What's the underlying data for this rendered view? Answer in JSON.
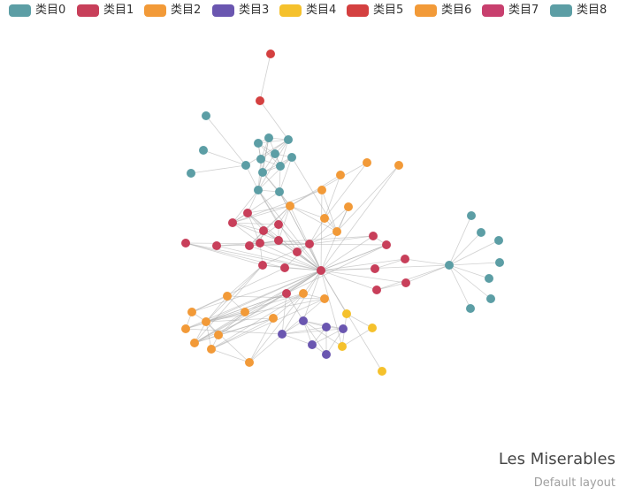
{
  "chart_data": {
    "type": "graph",
    "title": "Les Miserables",
    "subtitle": "Default layout",
    "colors": [
      "#5c9ea5",
      "#c83f5a",
      "#f29a38",
      "#6a56b0",
      "#f5c12c",
      "#d44040",
      "#f29a38",
      "#c83f6e",
      "#5c9ea5"
    ],
    "categories": [
      "类目0",
      "类目1",
      "类目2",
      "类目3",
      "类目4",
      "类目5",
      "类目6",
      "类目7",
      "类目8"
    ],
    "nodes": [
      {
        "id": 0,
        "category": 5
      },
      {
        "id": 1,
        "category": 5
      },
      {
        "id": 2,
        "category": 0
      },
      {
        "id": 3,
        "category": 0
      },
      {
        "id": 4,
        "category": 0
      },
      {
        "id": 5,
        "category": 0
      },
      {
        "id": 6,
        "category": 0
      },
      {
        "id": 7,
        "category": 0
      },
      {
        "id": 8,
        "category": 0
      },
      {
        "id": 9,
        "category": 0
      },
      {
        "id": 10,
        "category": 0
      },
      {
        "id": 11,
        "category": 0
      },
      {
        "id": 12,
        "category": 0
      },
      {
        "id": 13,
        "category": 0
      },
      {
        "id": 14,
        "category": 0
      },
      {
        "id": 15,
        "category": 0
      },
      {
        "id": 16,
        "category": 2
      },
      {
        "id": 17,
        "category": 2
      },
      {
        "id": 18,
        "category": 2
      },
      {
        "id": 19,
        "category": 2
      },
      {
        "id": 20,
        "category": 2
      },
      {
        "id": 21,
        "category": 2
      },
      {
        "id": 22,
        "category": 2
      },
      {
        "id": 23,
        "category": 2
      },
      {
        "id": 24,
        "category": 1
      },
      {
        "id": 25,
        "category": 1
      },
      {
        "id": 26,
        "category": 1
      },
      {
        "id": 27,
        "category": 1
      },
      {
        "id": 28,
        "category": 1
      },
      {
        "id": 29,
        "category": 1
      },
      {
        "id": 30,
        "category": 1
      },
      {
        "id": 31,
        "category": 1
      },
      {
        "id": 32,
        "category": 1
      },
      {
        "id": 33,
        "category": 1
      },
      {
        "id": 34,
        "category": 1
      },
      {
        "id": 35,
        "category": 1
      },
      {
        "id": 36,
        "category": 1
      },
      {
        "id": 37,
        "category": 1
      },
      {
        "id": 38,
        "category": 1
      },
      {
        "id": 39,
        "category": 1
      },
      {
        "id": 40,
        "category": 1
      },
      {
        "id": 41,
        "category": 1
      },
      {
        "id": 42,
        "category": 1
      },
      {
        "id": 43,
        "category": 1
      },
      {
        "id": 44,
        "category": 8
      },
      {
        "id": 45,
        "category": 8
      },
      {
        "id": 46,
        "category": 8
      },
      {
        "id": 47,
        "category": 8
      },
      {
        "id": 48,
        "category": 8
      },
      {
        "id": 49,
        "category": 8
      },
      {
        "id": 50,
        "category": 8
      },
      {
        "id": 51,
        "category": 8
      },
      {
        "id": 52,
        "category": 2
      },
      {
        "id": 53,
        "category": 2
      },
      {
        "id": 54,
        "category": 2
      },
      {
        "id": 55,
        "category": 2
      },
      {
        "id": 56,
        "category": 2
      },
      {
        "id": 57,
        "category": 2
      },
      {
        "id": 58,
        "category": 2
      },
      {
        "id": 59,
        "category": 2
      },
      {
        "id": 60,
        "category": 2
      },
      {
        "id": 61,
        "category": 2
      },
      {
        "id": 62,
        "category": 2
      },
      {
        "id": 63,
        "category": 2
      },
      {
        "id": 64,
        "category": 1
      },
      {
        "id": 65,
        "category": 3
      },
      {
        "id": 66,
        "category": 3
      },
      {
        "id": 67,
        "category": 3
      },
      {
        "id": 68,
        "category": 3
      },
      {
        "id": 69,
        "category": 3
      },
      {
        "id": 70,
        "category": 3
      },
      {
        "id": 71,
        "category": 4
      },
      {
        "id": 72,
        "category": 4
      },
      {
        "id": 73,
        "category": 4
      }
    ],
    "links": [
      [
        0,
        1
      ],
      [
        1,
        7
      ],
      [
        2,
        9
      ],
      [
        3,
        9
      ],
      [
        4,
        9
      ],
      [
        5,
        8
      ],
      [
        5,
        10
      ],
      [
        5,
        7
      ],
      [
        5,
        13
      ],
      [
        5,
        11
      ],
      [
        5,
        6
      ],
      [
        6,
        10
      ],
      [
        6,
        7
      ],
      [
        6,
        11
      ],
      [
        6,
        14
      ],
      [
        6,
        13
      ],
      [
        7,
        10
      ],
      [
        7,
        11
      ],
      [
        7,
        8
      ],
      [
        7,
        14
      ],
      [
        8,
        11
      ],
      [
        8,
        12
      ],
      [
        8,
        13
      ],
      [
        9,
        7
      ],
      [
        9,
        14
      ],
      [
        10,
        11
      ],
      [
        10,
        14
      ],
      [
        11,
        12
      ],
      [
        11,
        13
      ],
      [
        12,
        13
      ],
      [
        12,
        14
      ],
      [
        13,
        14
      ],
      [
        14,
        15
      ],
      [
        13,
        15
      ],
      [
        11,
        15
      ],
      [
        12,
        15
      ],
      [
        14,
        24
      ],
      [
        14,
        25
      ],
      [
        14,
        27
      ],
      [
        15,
        25
      ],
      [
        15,
        23
      ],
      [
        13,
        23
      ],
      [
        12,
        22
      ],
      [
        14,
        37
      ],
      [
        15,
        37
      ],
      [
        14,
        39
      ],
      [
        37,
        15
      ],
      [
        37,
        23
      ],
      [
        16,
        21
      ],
      [
        17,
        21
      ],
      [
        18,
        22
      ],
      [
        19,
        22
      ],
      [
        20,
        22
      ],
      [
        21,
        22
      ],
      [
        21,
        23
      ],
      [
        22,
        23
      ],
      [
        23,
        25
      ],
      [
        22,
        38
      ],
      [
        21,
        38
      ],
      [
        20,
        38
      ],
      [
        19,
        25
      ],
      [
        16,
        23
      ],
      [
        17,
        23
      ],
      [
        23,
        24
      ],
      [
        23,
        26
      ],
      [
        23,
        27
      ],
      [
        23,
        29
      ],
      [
        23,
        30
      ],
      [
        24,
        26
      ],
      [
        24,
        25
      ],
      [
        24,
        28
      ],
      [
        25,
        26
      ],
      [
        25,
        27
      ],
      [
        25,
        28
      ],
      [
        25,
        29
      ],
      [
        26,
        29
      ],
      [
        26,
        30
      ],
      [
        27,
        29
      ],
      [
        28,
        29
      ],
      [
        24,
        29
      ],
      [
        26,
        28
      ],
      [
        29,
        30
      ],
      [
        26,
        37
      ],
      [
        27,
        37
      ],
      [
        28,
        37
      ],
      [
        29,
        37
      ],
      [
        30,
        37
      ],
      [
        29,
        38
      ],
      [
        30,
        38
      ],
      [
        31,
        38
      ],
      [
        32,
        38
      ],
      [
        34,
        38
      ],
      [
        35,
        38
      ],
      [
        36,
        37
      ],
      [
        37,
        38
      ],
      [
        37,
        39
      ],
      [
        37,
        24
      ],
      [
        27,
        30
      ],
      [
        28,
        31
      ],
      [
        31,
        32
      ],
      [
        37,
        40
      ],
      [
        37,
        41
      ],
      [
        37,
        42
      ],
      [
        37,
        43
      ],
      [
        37,
        44
      ],
      [
        37,
        33
      ],
      [
        37,
        34
      ],
      [
        37,
        35
      ],
      [
        37,
        36
      ],
      [
        37,
        64
      ],
      [
        37,
        65
      ],
      [
        37,
        66
      ],
      [
        37,
        71
      ],
      [
        37,
        72
      ],
      [
        37,
        53
      ],
      [
        37,
        54
      ],
      [
        37,
        56
      ],
      [
        37,
        55
      ],
      [
        37,
        58
      ],
      [
        37,
        57
      ],
      [
        37,
        18
      ],
      [
        37,
        20
      ],
      [
        37,
        19
      ],
      [
        37,
        61
      ],
      [
        37,
        32
      ],
      [
        37,
        31
      ],
      [
        40,
        41
      ],
      [
        41,
        44
      ],
      [
        42,
        44
      ],
      [
        43,
        44
      ],
      [
        42,
        43
      ],
      [
        44,
        45
      ],
      [
        44,
        46
      ],
      [
        44,
        47
      ],
      [
        44,
        48
      ],
      [
        44,
        49
      ],
      [
        44,
        50
      ],
      [
        44,
        51
      ],
      [
        52,
        53
      ],
      [
        52,
        54
      ],
      [
        52,
        56
      ],
      [
        52,
        63
      ],
      [
        53,
        56
      ],
      [
        53,
        58
      ],
      [
        53,
        57
      ],
      [
        54,
        55
      ],
      [
        54,
        56
      ],
      [
        56,
        57
      ],
      [
        56,
        58
      ],
      [
        56,
        59
      ],
      [
        56,
        60
      ],
      [
        56,
        61
      ],
      [
        56,
        62
      ],
      [
        56,
        63
      ],
      [
        56,
        64
      ],
      [
        56,
        31
      ],
      [
        57,
        58
      ],
      [
        57,
        59
      ],
      [
        57,
        60
      ],
      [
        58,
        60
      ],
      [
        58,
        61
      ],
      [
        59,
        60
      ],
      [
        59,
        61
      ],
      [
        59,
        62
      ],
      [
        59,
        63
      ],
      [
        60,
        61
      ],
      [
        60,
        62
      ],
      [
        61,
        62
      ],
      [
        61,
        63
      ],
      [
        62,
        63
      ],
      [
        55,
        53
      ],
      [
        54,
        32
      ],
      [
        52,
        31
      ],
      [
        58,
        31
      ],
      [
        56,
        55
      ],
      [
        55,
        65
      ],
      [
        64,
        65
      ],
      [
        64,
        56
      ],
      [
        64,
        57
      ],
      [
        64,
        58
      ],
      [
        65,
        66
      ],
      [
        65,
        67
      ],
      [
        65,
        68
      ],
      [
        66,
        67
      ],
      [
        66,
        68
      ],
      [
        66,
        69
      ],
      [
        66,
        70
      ],
      [
        67,
        68
      ],
      [
        67,
        69
      ],
      [
        67,
        70
      ],
      [
        68,
        69
      ],
      [
        68,
        70
      ],
      [
        69,
        70
      ],
      [
        65,
        69
      ],
      [
        64,
        66
      ],
      [
        64,
        37
      ],
      [
        64,
        36
      ],
      [
        66,
        71
      ],
      [
        71,
        72
      ],
      [
        72,
        73
      ],
      [
        71,
        73
      ],
      [
        38,
        39
      ],
      [
        32,
        33
      ],
      [
        33,
        36
      ],
      [
        34,
        35
      ],
      [
        35,
        36
      ],
      [
        31,
        33
      ]
    ]
  }
}
